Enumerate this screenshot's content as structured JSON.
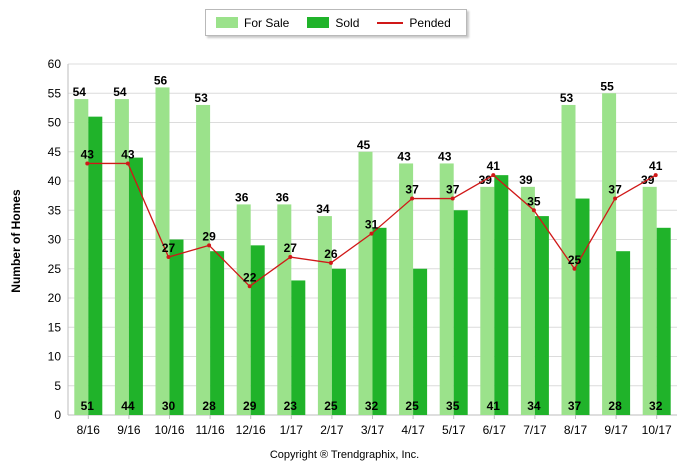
{
  "chart_data": {
    "type": "bar",
    "categories": [
      "8/16",
      "9/16",
      "10/16",
      "11/16",
      "12/16",
      "1/17",
      "2/17",
      "3/17",
      "4/17",
      "5/17",
      "6/17",
      "7/17",
      "8/17",
      "9/17",
      "10/17"
    ],
    "series": [
      {
        "name": "For Sale",
        "type": "bar",
        "color": "#9be28b",
        "values": [
          54,
          54,
          56,
          53,
          36,
          36,
          34,
          45,
          43,
          43,
          39,
          39,
          53,
          55,
          39
        ]
      },
      {
        "name": "Sold",
        "type": "bar",
        "color": "#20b32a",
        "values": [
          51,
          44,
          30,
          28,
          29,
          23,
          25,
          32,
          25,
          35,
          41,
          34,
          37,
          28,
          32
        ]
      },
      {
        "name": "Pended",
        "type": "line",
        "color": "#d01818",
        "values": [
          43,
          43,
          27,
          29,
          22,
          27,
          26,
          31,
          37,
          37,
          41,
          35,
          25,
          37,
          41
        ]
      }
    ],
    "xlabel": "",
    "ylabel": "Number of Homes",
    "ylim": [
      0,
      60
    ],
    "yticks": [
      0,
      5,
      10,
      15,
      20,
      25,
      30,
      35,
      40,
      45,
      50,
      55,
      60
    ],
    "grid": true,
    "legend_position": "top-center"
  },
  "legend": {
    "for_sale": "For Sale",
    "sold": "Sold",
    "pended": "Pended"
  },
  "footer": {
    "copyright": "Copyright ® Trendgraphix, Inc."
  }
}
